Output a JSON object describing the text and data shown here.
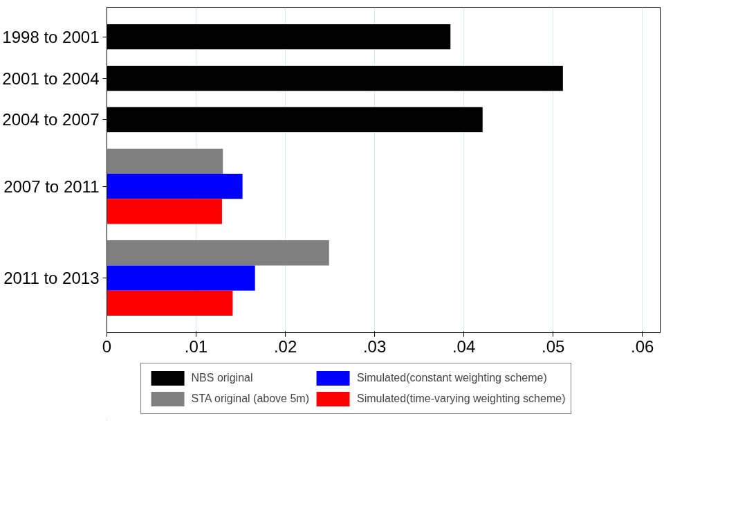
{
  "chart_data": {
    "type": "bar",
    "orientation": "horizontal",
    "categories": [
      "1998 to 2001",
      "2001 to 2004",
      "2004 to 2007",
      "2007 to 2011",
      "2011 to 2013"
    ],
    "series": [
      {
        "name": "NBS original",
        "color": "#000000",
        "values": [
          0.0385,
          0.0511,
          0.0421,
          null,
          null
        ]
      },
      {
        "name": "STA original (above 5m)",
        "color": "#808080",
        "values": [
          null,
          null,
          null,
          0.013,
          0.0249
        ]
      },
      {
        "name": "Simulated(constant weighting scheme)",
        "color": "#0000ff",
        "values": [
          null,
          null,
          null,
          0.0152,
          0.0166
        ]
      },
      {
        "name": "Simulated(time-varying weighting scheme)",
        "color": "#ff0000",
        "values": [
          null,
          null,
          null,
          0.0129,
          0.0141
        ]
      }
    ],
    "xlim": [
      0,
      0.062
    ],
    "xticks": [
      0,
      {
        "value": 0.01,
        "label": ".01"
      },
      {
        "value": 0.02,
        "label": ".02"
      },
      {
        "value": 0.03,
        "label": ".03"
      },
      {
        "value": 0.04,
        "label": ".04"
      },
      {
        "value": 0.05,
        "label": ".05"
      },
      {
        "value": 0.06,
        "label": ".06"
      }
    ],
    "grid": "x",
    "legend": "bottom"
  }
}
